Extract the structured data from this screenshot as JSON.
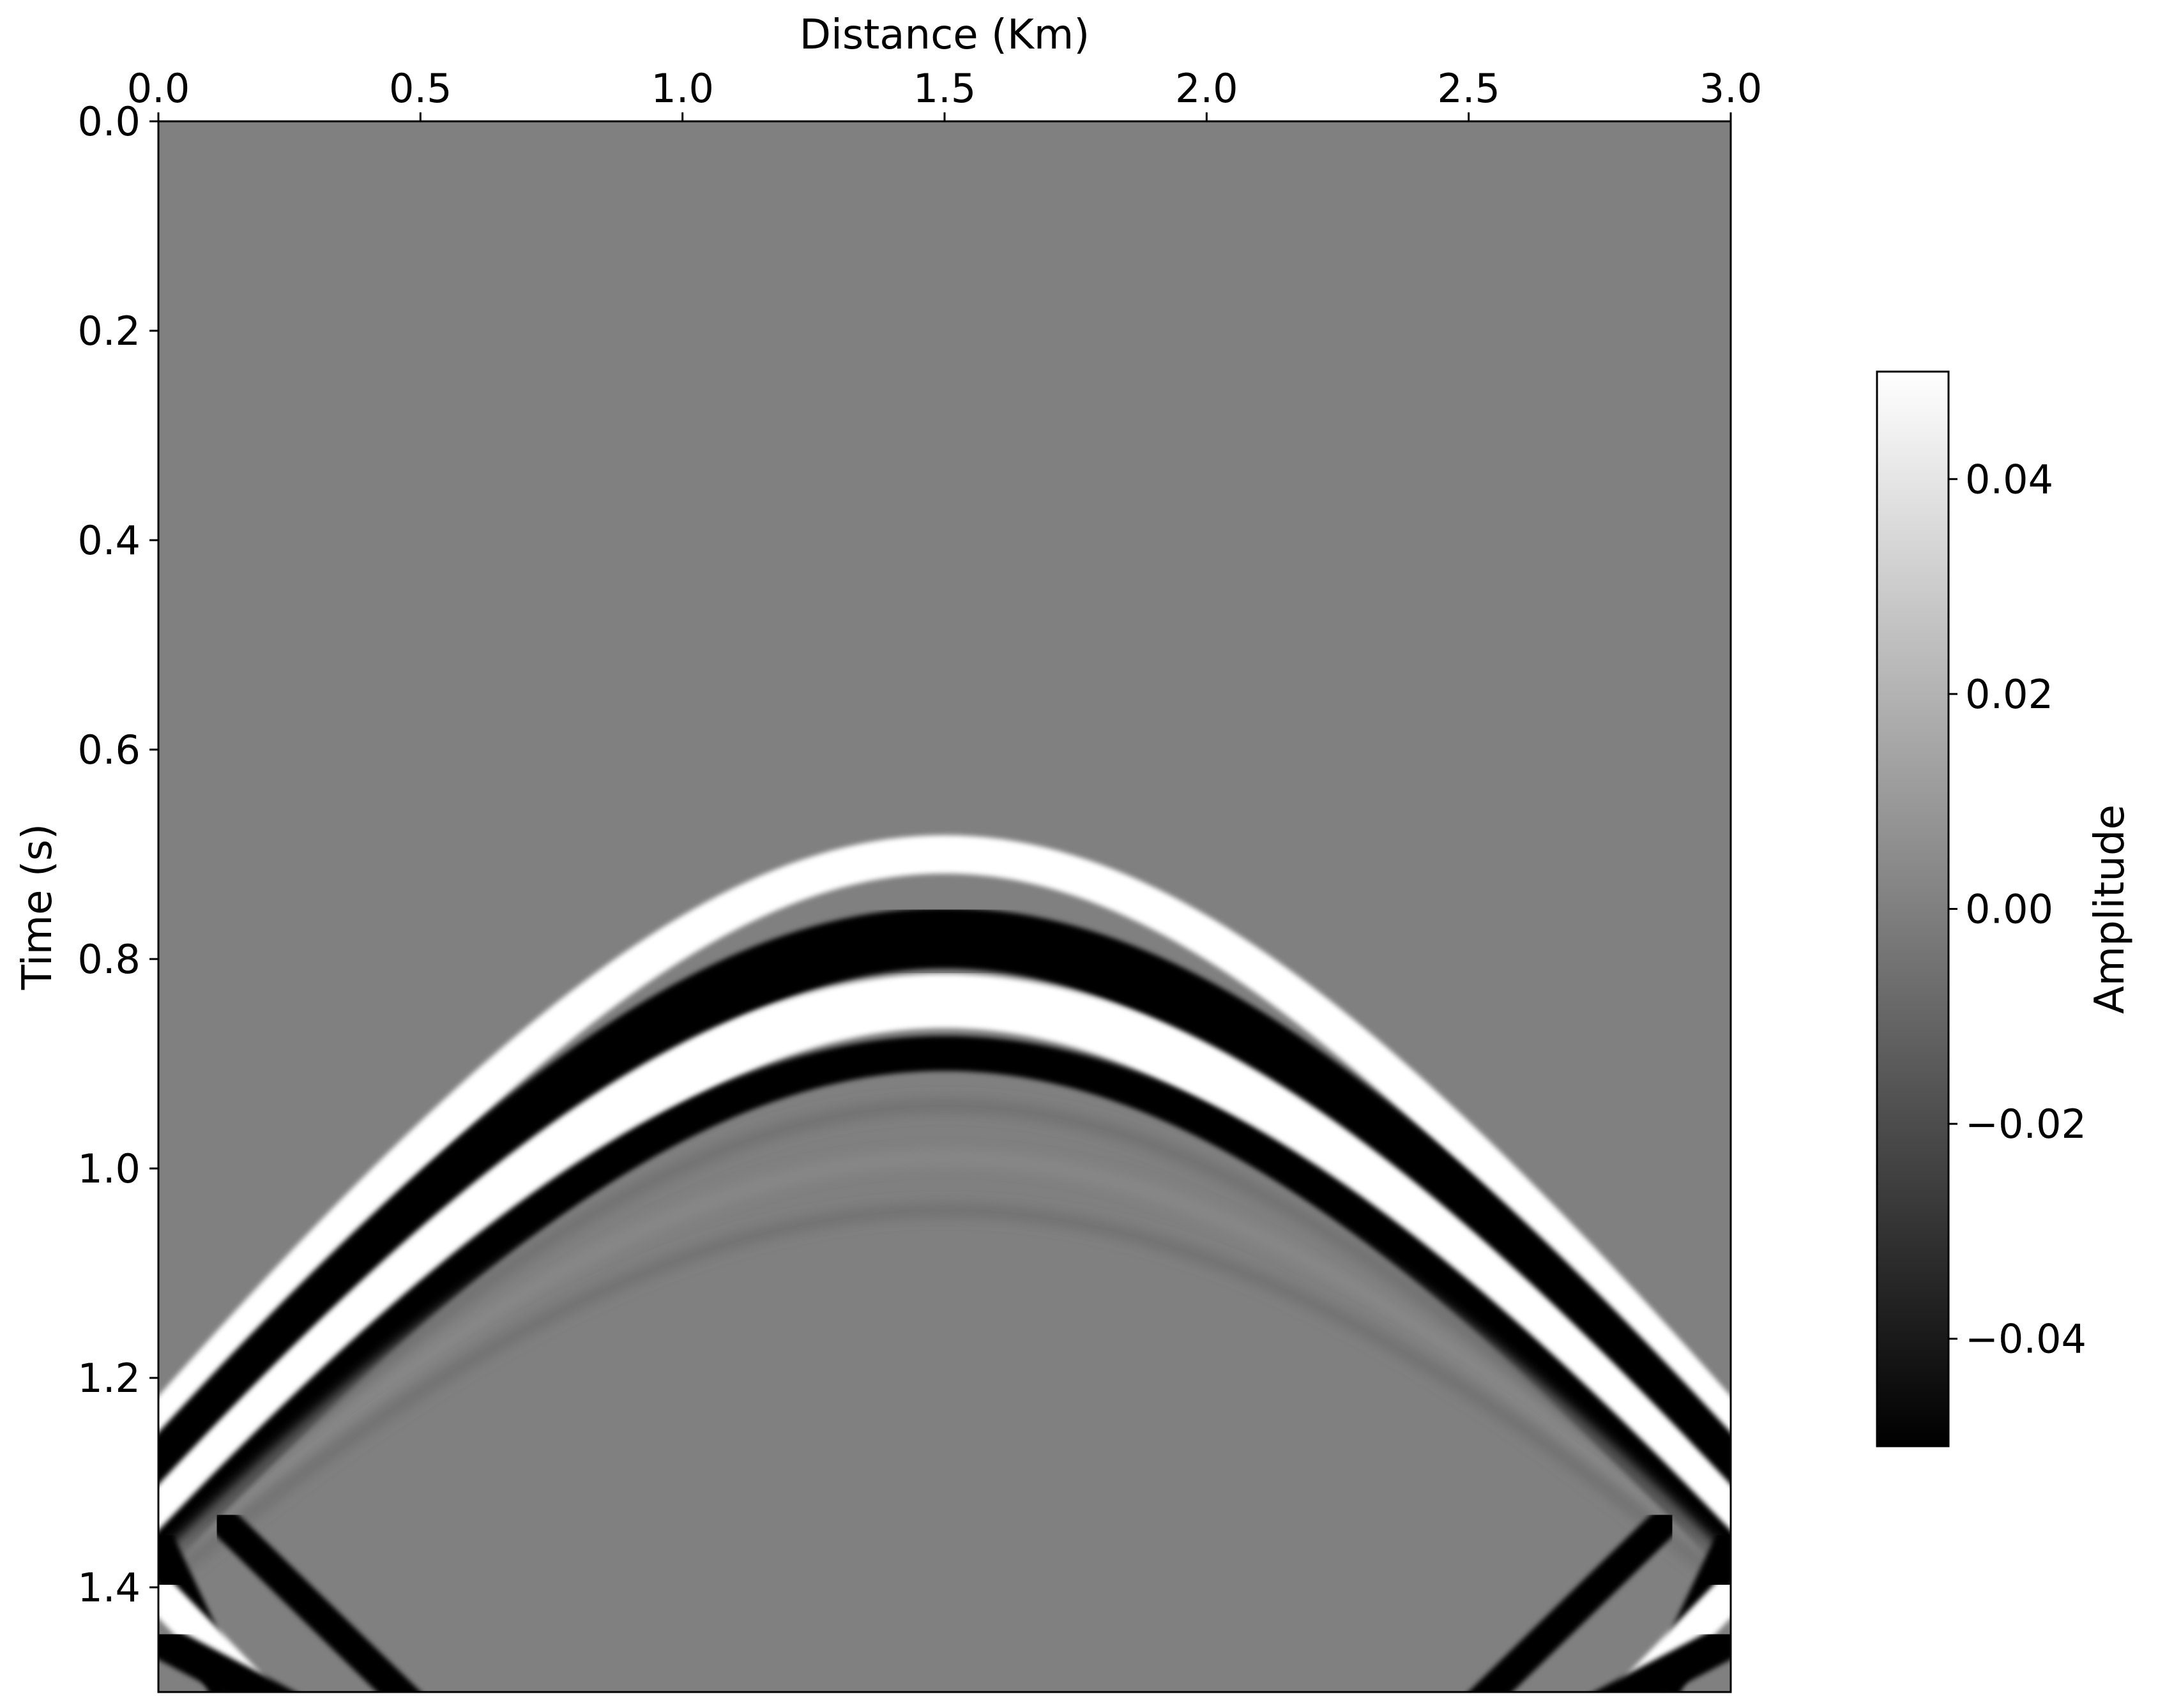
{
  "chart_data": {
    "type": "heatmap",
    "title": "",
    "xlabel": "Distance (Km)",
    "ylabel": "Time (s)",
    "x_axis_position": "top",
    "y_axis_inverted": true,
    "xlim": [
      0.0,
      3.0
    ],
    "ylim": [
      1.5,
      0.0
    ],
    "xticks": [
      "0.0",
      "0.5",
      "1.0",
      "1.5",
      "2.0",
      "2.5",
      "3.0"
    ],
    "yticks": [
      "0.0",
      "0.2",
      "0.4",
      "0.6",
      "0.8",
      "1.0",
      "1.2",
      "1.4"
    ],
    "colormap": "gray",
    "grid": false,
    "colorbar": {
      "label": "Amplitude",
      "range": [
        -0.05,
        0.05
      ],
      "ticks": [
        "0.04",
        "0.02",
        "0.00",
        "−0.02",
        "−0.04"
      ],
      "tick_values": [
        0.04,
        0.02,
        0.0,
        -0.02,
        -0.04
      ],
      "placement": "right"
    },
    "colors": {
      "background_amplitude": "#808080",
      "positive_max": "#ffffff",
      "negative_max": "#000000"
    },
    "events": [
      {
        "name": "direct-hyperbola",
        "apex_x_km": 1.5,
        "apex_time_s": 0.69,
        "edge_time_s": 1.22,
        "lobes": [
          {
            "polarity": "positive",
            "apex_time_s": 0.7
          },
          {
            "polarity": "negative",
            "apex_time_s": 0.78
          },
          {
            "polarity": "positive",
            "apex_time_s": 0.84
          },
          {
            "polarity": "negative",
            "apex_time_s": 0.89
          }
        ]
      },
      {
        "name": "boundary-reflection-left",
        "corner_x_km": 0.13,
        "corner_time_s": 1.34,
        "end_x_km": 0.5,
        "end_time_s": 1.5
      },
      {
        "name": "boundary-reflection-right",
        "corner_x_km": 2.87,
        "corner_time_s": 1.34,
        "end_x_km": 2.5,
        "end_time_s": 1.5
      }
    ]
  }
}
